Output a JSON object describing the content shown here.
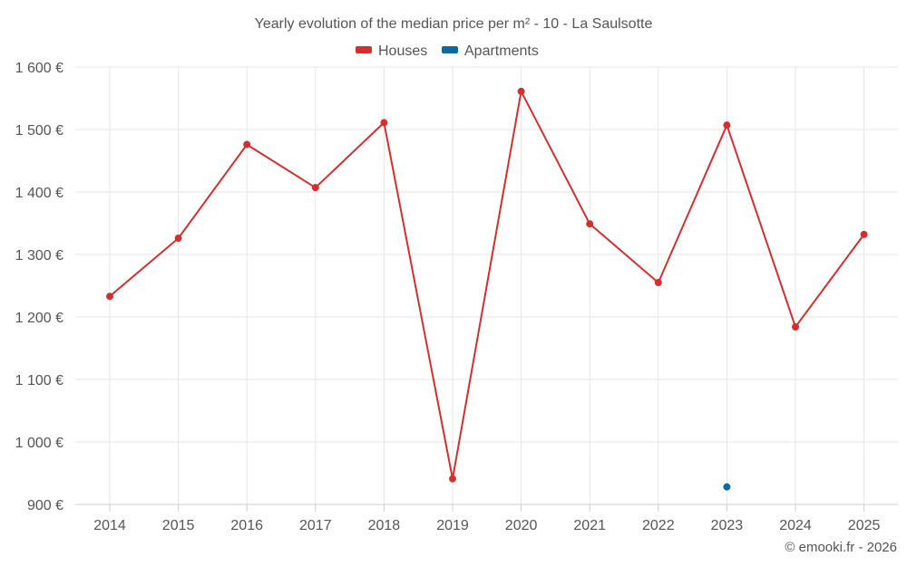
{
  "chart_data": {
    "type": "line",
    "title": "Yearly evolution of the median price per m² - 10 - La Saulsotte",
    "categories": [
      "2014",
      "2015",
      "2016",
      "2017",
      "2018",
      "2019",
      "2020",
      "2021",
      "2022",
      "2023",
      "2024",
      "2025"
    ],
    "series": [
      {
        "name": "Houses",
        "color": "#d32f2f",
        "values": [
          1233,
          1326,
          1476,
          1407,
          1511,
          941,
          1561,
          1349,
          1255,
          1507,
          1184,
          1332
        ]
      },
      {
        "name": "Apartments",
        "color": "#0a6aa1",
        "values": [
          null,
          null,
          null,
          null,
          null,
          null,
          null,
          null,
          null,
          928,
          null,
          null
        ]
      }
    ],
    "ylim": [
      900,
      1600
    ],
    "yticks": [
      900,
      1000,
      1100,
      1200,
      1300,
      1400,
      1500,
      1600
    ],
    "ytick_labels": [
      "900 €",
      "1 000 €",
      "1 100 €",
      "1 200 €",
      "1 300 €",
      "1 400 €",
      "1 500 €",
      "1 600 €"
    ],
    "grid": true,
    "legend_position": "top-center",
    "xlabel": "",
    "ylabel": ""
  },
  "credit": "© emooki.fr - 2026",
  "colors": {
    "grid": "#e6e6e6",
    "axis": "#cccccc",
    "text": "#555555"
  }
}
